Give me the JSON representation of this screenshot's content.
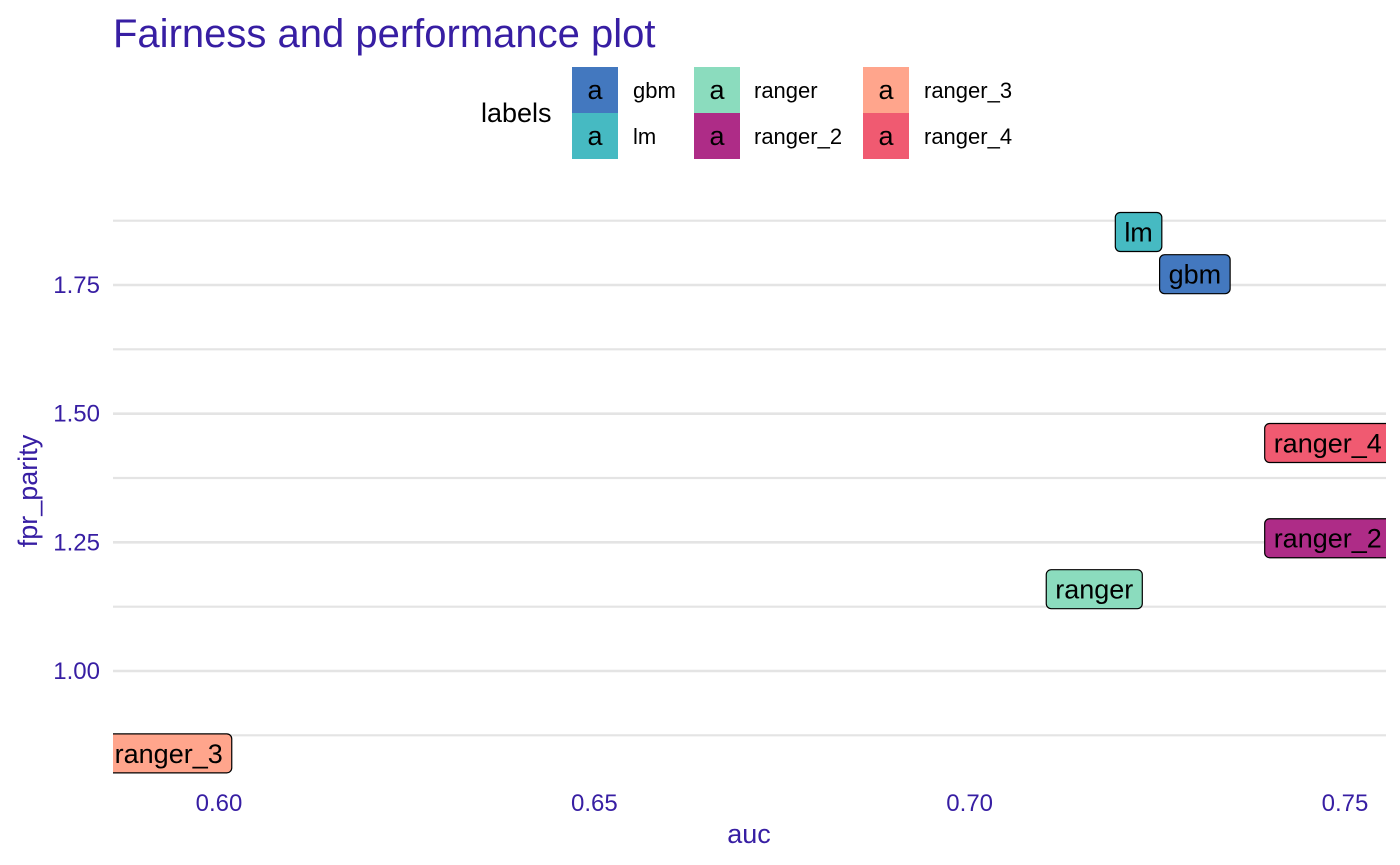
{
  "chart_data": {
    "type": "scatter",
    "title": "Fairness and performance plot",
    "xlabel": "auc",
    "ylabel": "fpr_parity",
    "xlim": [
      0.586,
      0.755
    ],
    "ylim": [
      0.8,
      1.92
    ],
    "x_ticks": [
      0.6,
      0.65,
      0.7,
      0.75
    ],
    "x_tick_labels": [
      "0.60",
      "0.65",
      "0.70",
      "0.75"
    ],
    "y_ticks": [
      1.0,
      1.25,
      1.5,
      1.75
    ],
    "y_tick_labels": [
      "1.00",
      "1.25",
      "1.50",
      "1.75"
    ],
    "y_minor_ticks": [
      0.875,
      1.125,
      1.375,
      1.625,
      1.875
    ],
    "grid": true,
    "legend": {
      "title": "labels",
      "position": "top",
      "key_glyph": "a",
      "items": [
        {
          "name": "gbm",
          "color": "#4378bf"
        },
        {
          "name": "lm",
          "color": "#46bac2"
        },
        {
          "name": "ranger",
          "color": "#8bdcbe"
        },
        {
          "name": "ranger_2",
          "color": "#ae2c87"
        },
        {
          "name": "ranger_3",
          "color": "#ffa58c"
        },
        {
          "name": "ranger_4",
          "color": "#f05a71"
        }
      ]
    },
    "points": [
      {
        "label": "lm",
        "x": 0.7225,
        "y": 1.853,
        "color": "#46bac2"
      },
      {
        "label": "gbm",
        "x": 0.73,
        "y": 1.771,
        "color": "#4378bf"
      },
      {
        "label": "ranger_4",
        "x": 0.7477,
        "y": 1.443,
        "color": "#f05a71"
      },
      {
        "label": "ranger_2",
        "x": 0.7477,
        "y": 1.258,
        "color": "#ae2c87"
      },
      {
        "label": "ranger",
        "x": 0.7166,
        "y": 1.159,
        "color": "#8bdcbe"
      },
      {
        "label": "ranger_3",
        "x": 0.5933,
        "y": 0.84,
        "color": "#ffa58c"
      }
    ],
    "colors": {
      "text": "#371ea3",
      "grid": "#e4e4e4",
      "legend_text": "#000000"
    }
  }
}
